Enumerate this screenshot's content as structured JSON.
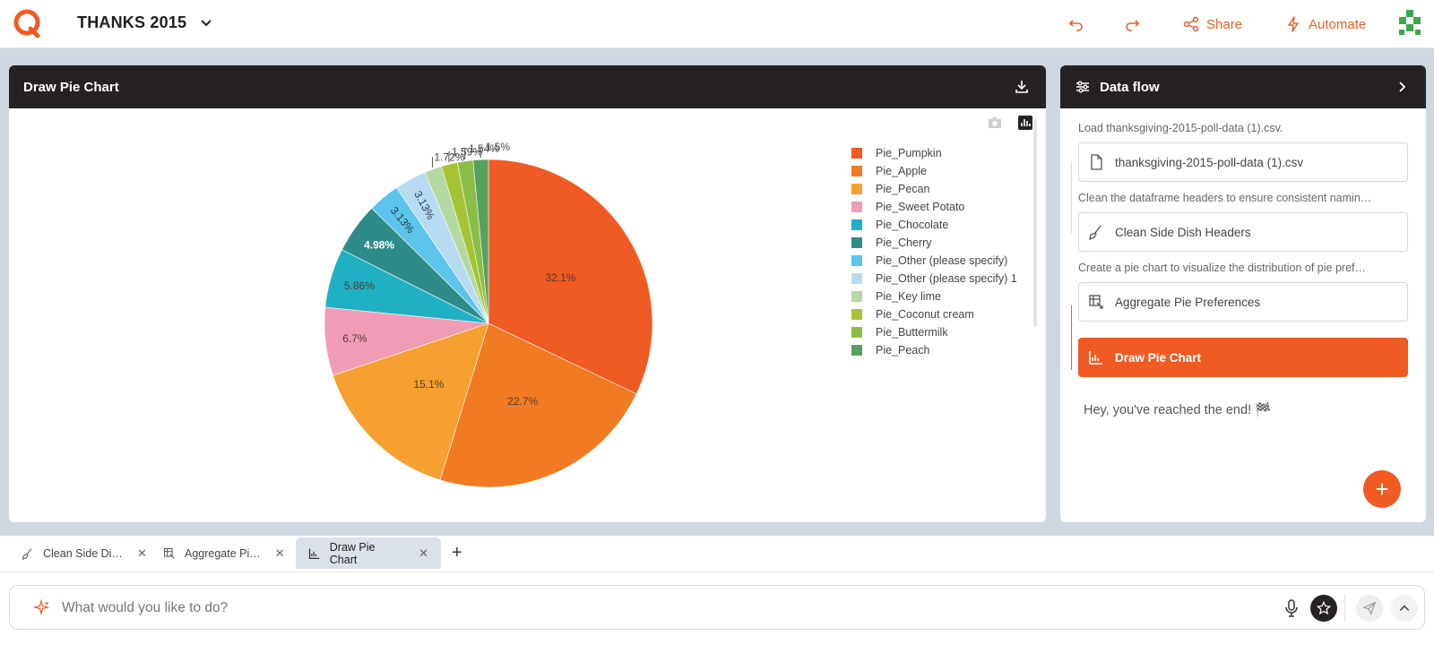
{
  "app": {
    "project_title": "THANKS 2015",
    "share_label": "Share",
    "automate_label": "Automate",
    "accent_color": "#f05a23"
  },
  "chart_panel": {
    "title": "Draw Pie Chart"
  },
  "chart_data": {
    "type": "pie",
    "title": "",
    "categories": [
      "Pie_Pumpkin",
      "Pie_Apple",
      "Pie_Pecan",
      "Pie_Sweet Potato",
      "Pie_Chocolate",
      "Pie_Cherry",
      "Pie_Other (please specify)",
      "Pie_Other (please specify) 1",
      "Pie_Key lime",
      "Pie_Coconut cream",
      "Pie_Buttermilk",
      "Pie_Peach"
    ],
    "values": [
      32.1,
      22.7,
      15.1,
      6.7,
      5.86,
      4.98,
      3.13,
      3.13,
      1.72,
      1.59,
      1.54,
      1.5
    ],
    "labels": [
      "32.1%",
      "22.7%",
      "15.1%",
      "6.7%",
      "5.86%",
      "4.98%",
      "3.13%",
      "3.13%",
      "1.72%",
      "1.59%",
      "1.54%",
      "1.5%"
    ],
    "colors": [
      "#f05a23",
      "#f07b23",
      "#f5a030",
      "#f19cb6",
      "#20b0c4",
      "#2e8c88",
      "#5dc4ec",
      "#b7dcf1",
      "#b4d9a2",
      "#a4c436",
      "#8abf47",
      "#58a060"
    ],
    "legend_position": "right"
  },
  "flow_panel": {
    "title": "Data flow",
    "steps": [
      {
        "note": "Load thanksgiving-2015-poll-data (1).csv.",
        "label": "thanksgiving-2015-poll-data (1).csv",
        "icon": "file-icon"
      },
      {
        "note": "Clean the dataframe headers to ensure consistent namin…",
        "label": "Clean Side Dish Headers",
        "icon": "broom-icon"
      },
      {
        "note": "Create a pie chart to visualize the distribution of pie pref…",
        "label": "Aggregate Pie Preferences",
        "icon": "aggregate-icon"
      },
      {
        "note": "",
        "label": "Draw Pie Chart",
        "icon": "chart-icon"
      }
    ],
    "end_text": "Hey, you've reached the end! 🏁"
  },
  "tabs": [
    {
      "label": "Clean Side Di…",
      "icon": "broom-icon"
    },
    {
      "label": "Aggregate Pi…",
      "icon": "aggregate-icon"
    },
    {
      "label": "Draw Pie Chart",
      "icon": "chart-icon"
    }
  ],
  "prompt": {
    "placeholder": "What would you like to do?",
    "value": ""
  }
}
